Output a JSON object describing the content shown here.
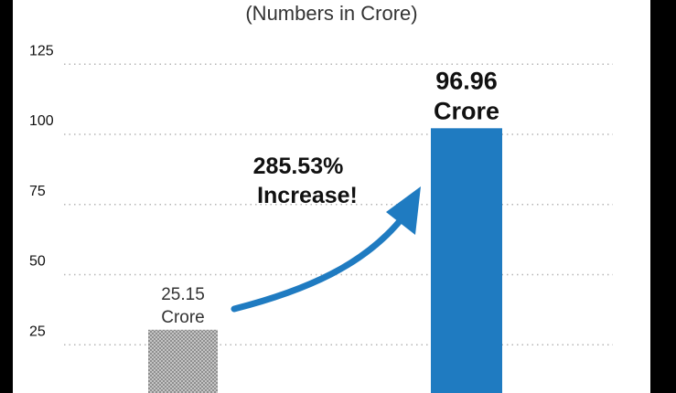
{
  "chart_data": {
    "type": "bar",
    "subtitle": "(Numbers in Crore)",
    "categories": [
      "",
      ""
    ],
    "series": [
      {
        "values": [
          25.15,
          96.96
        ]
      }
    ],
    "data_labels": [
      {
        "value": "25.15",
        "unit": "Crore"
      },
      {
        "value": "96.96",
        "unit": "Crore"
      }
    ],
    "bar_colors": [
      "#a9a9a9",
      "#1f7bc1"
    ],
    "annotation": {
      "line1": "285.53%",
      "line2": "Increase!",
      "arrow_color": "#1f7bc1"
    },
    "y_ticks": [
      25,
      50,
      75,
      100,
      125
    ],
    "ylim": [
      0,
      125
    ],
    "grid": true
  }
}
